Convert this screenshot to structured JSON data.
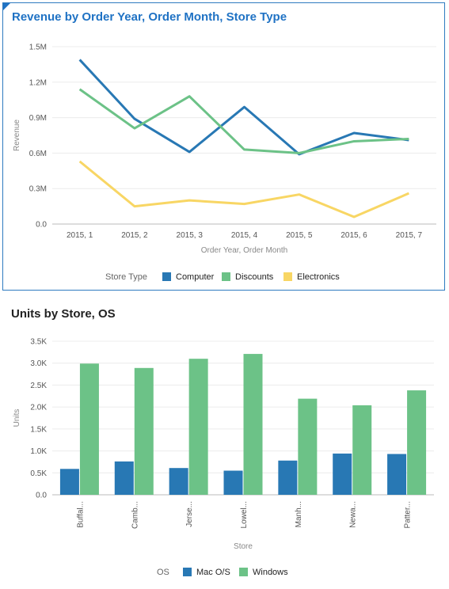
{
  "chart_data": [
    {
      "type": "line",
      "title": "Revenue by Order Year, Order Month, Store Type",
      "xlabel": "Order Year, Order Month",
      "ylabel": "Revenue",
      "categories": [
        "2015, 1",
        "2015, 2",
        "2015, 3",
        "2015, 4",
        "2015, 5",
        "2015, 6",
        "2015, 7"
      ],
      "yticks": [
        0,
        0.3,
        0.6,
        0.9,
        1.2,
        1.5
      ],
      "ytick_labels": [
        "0.0",
        "0.3M",
        "0.6M",
        "0.9M",
        "1.2M",
        "1.5M"
      ],
      "ylim": [
        0,
        1.5
      ],
      "grid": true,
      "legend_title": "Store Type",
      "legend_position": "bottom",
      "series": [
        {
          "name": "Computer",
          "color": "#2878b4",
          "values": [
            1.39,
            0.89,
            0.61,
            0.99,
            0.59,
            0.77,
            0.71
          ]
        },
        {
          "name": "Discounts",
          "color": "#6cc287",
          "values": [
            1.14,
            0.81,
            1.08,
            0.63,
            0.6,
            0.7,
            0.72
          ]
        },
        {
          "name": "Electronics",
          "color": "#f8d664",
          "values": [
            0.53,
            0.15,
            0.2,
            0.17,
            0.25,
            0.06,
            0.26
          ]
        }
      ]
    },
    {
      "type": "bar",
      "title": "Units by Store, OS",
      "xlabel": "Store",
      "ylabel": "Units",
      "categories": [
        "Buffal...",
        "Camb...",
        "Jerse...",
        "Lowel...",
        "Manh...",
        "Newa...",
        "Patter..."
      ],
      "yticks": [
        0,
        0.5,
        1.0,
        1.5,
        2.0,
        2.5,
        3.0,
        3.5
      ],
      "ytick_labels": [
        "0.0",
        "0.5K",
        "1.0K",
        "1.5K",
        "2.0K",
        "2.5K",
        "3.0K",
        "3.5K"
      ],
      "ylim": [
        0,
        3.5
      ],
      "grid": true,
      "legend_title": "OS",
      "legend_position": "bottom",
      "series": [
        {
          "name": "Mac O/S",
          "color": "#2878b4",
          "values": [
            0.59,
            0.76,
            0.61,
            0.55,
            0.78,
            0.94,
            0.93
          ]
        },
        {
          "name": "Windows",
          "color": "#6cc287",
          "values": [
            2.99,
            2.89,
            3.1,
            3.21,
            2.19,
            2.04,
            2.38
          ]
        }
      ]
    }
  ]
}
